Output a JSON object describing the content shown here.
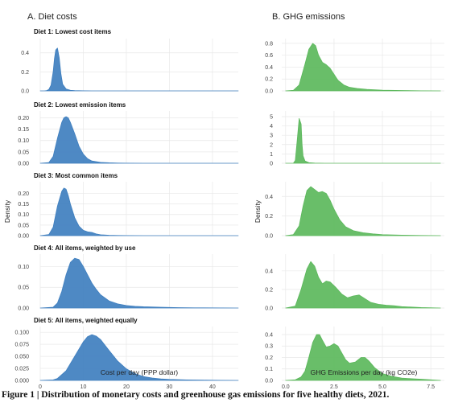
{
  "figure": {
    "caption": "Figure 1 | Distribution of monetary costs and greenhouse gas emissions for five healthy diets, 2021."
  },
  "chart_data": [
    {
      "type": "area",
      "title": "A. Diet costs",
      "xlabel": "Cost per day (PPP dollar)",
      "ylabel": "Density",
      "xlim": [
        0,
        46
      ],
      "xticks": [
        0,
        10,
        20,
        30,
        40
      ],
      "color": "#3f7fbf",
      "grid": true,
      "panels": [
        {
          "title": "Diet 1: Lowest cost items",
          "ylim": [
            0,
            0.55
          ],
          "yticks": [
            "0.0",
            "0.2",
            "0.4"
          ],
          "x": [
            0,
            1,
            1.5,
            2,
            2.5,
            3,
            3.3,
            3.6,
            4,
            4.4,
            4.8,
            5.2,
            6,
            7,
            8,
            10,
            12,
            46
          ],
          "y": [
            0,
            0,
            0.003,
            0.015,
            0.06,
            0.2,
            0.34,
            0.43,
            0.45,
            0.35,
            0.18,
            0.07,
            0.02,
            0.006,
            0.003,
            0.001,
            0,
            0
          ]
        },
        {
          "title": "Diet 2: Lowest emission items",
          "ylim": [
            0,
            0.23
          ],
          "yticks": [
            "0.00",
            "0.05",
            "0.10",
            "0.15",
            "0.20"
          ],
          "x": [
            0,
            2,
            3,
            4,
            5,
            5.5,
            6,
            6.5,
            7,
            8,
            9,
            10,
            11,
            12,
            14,
            16,
            18,
            20,
            24,
            46
          ],
          "y": [
            0,
            0.003,
            0.03,
            0.11,
            0.18,
            0.2,
            0.205,
            0.2,
            0.18,
            0.13,
            0.075,
            0.04,
            0.02,
            0.01,
            0.004,
            0.002,
            0.001,
            0.0005,
            0,
            0
          ]
        },
        {
          "title": "Diet 3: Most common items",
          "ylim": [
            0,
            0.255
          ],
          "yticks": [
            "0.00",
            "0.05",
            "0.10",
            "0.15",
            "0.20"
          ],
          "x": [
            0,
            2,
            3,
            4,
            5,
            5.5,
            6,
            6.5,
            7,
            8,
            9,
            10,
            11,
            12,
            13,
            14,
            16,
            18,
            20,
            24,
            46
          ],
          "y": [
            0,
            0.005,
            0.04,
            0.14,
            0.21,
            0.225,
            0.22,
            0.19,
            0.15,
            0.085,
            0.045,
            0.025,
            0.018,
            0.015,
            0.008,
            0.004,
            0.002,
            0.001,
            0.0005,
            0,
            0
          ]
        },
        {
          "title": "Diet 4: All items, weighted by use",
          "ylim": [
            0,
            0.13
          ],
          "yticks": [
            "0.00",
            "0.05",
            "0.10"
          ],
          "x": [
            0,
            3,
            4,
            5,
            6,
            7,
            8,
            9,
            10,
            11,
            12,
            13,
            14,
            16,
            18,
            20,
            22,
            24,
            28,
            32,
            36,
            46
          ],
          "y": [
            0,
            0.002,
            0.012,
            0.04,
            0.08,
            0.11,
            0.12,
            0.117,
            0.1,
            0.08,
            0.06,
            0.045,
            0.032,
            0.017,
            0.01,
            0.006,
            0.004,
            0.003,
            0.002,
            0.001,
            0.0005,
            0
          ]
        },
        {
          "title": "Diet 5: All items, weighted equally",
          "ylim": [
            0,
            0.112
          ],
          "yticks": [
            "0.000",
            "0.025",
            "0.050",
            "0.075",
            "0.100"
          ],
          "x": [
            0,
            3,
            4,
            6,
            8,
            10,
            11,
            12,
            13,
            14,
            16,
            18,
            20,
            22,
            24,
            26,
            28,
            30,
            34,
            38,
            42,
            46
          ],
          "y": [
            0,
            0.001,
            0.004,
            0.02,
            0.05,
            0.08,
            0.091,
            0.095,
            0.092,
            0.085,
            0.062,
            0.04,
            0.024,
            0.014,
            0.008,
            0.005,
            0.003,
            0.002,
            0.001,
            0.0005,
            0.0002,
            0
          ]
        }
      ]
    },
    {
      "type": "area",
      "title": "B. GHG emissions",
      "xlabel": "GHG Emissions per day (kg CO2e)",
      "ylabel": "Density",
      "xlim": [
        -0.2,
        8.2
      ],
      "xticks": [
        "0.0",
        "2.5",
        "5.0",
        "7.5"
      ],
      "color": "#5cb85c",
      "grid": true,
      "panels": [
        {
          "title": "",
          "ylim": [
            0,
            0.88
          ],
          "yticks": [
            "0.0",
            "0.2",
            "0.4",
            "0.6",
            "0.8"
          ],
          "x": [
            0,
            0.4,
            0.7,
            1.0,
            1.2,
            1.4,
            1.55,
            1.7,
            1.9,
            2.1,
            2.3,
            2.5,
            2.7,
            3.0,
            3.3,
            3.7,
            4.2,
            5.0,
            6.0,
            7.0,
            8.0
          ],
          "y": [
            0,
            0.01,
            0.1,
            0.45,
            0.7,
            0.8,
            0.76,
            0.6,
            0.48,
            0.44,
            0.38,
            0.28,
            0.18,
            0.1,
            0.06,
            0.04,
            0.025,
            0.012,
            0.006,
            0.002,
            0
          ]
        },
        {
          "title": "",
          "ylim": [
            0,
            5.6
          ],
          "yticks": [
            "0",
            "1",
            "2",
            "3",
            "4",
            "5"
          ],
          "x": [
            0,
            0.4,
            0.5,
            0.6,
            0.7,
            0.8,
            0.85,
            0.9,
            1.0,
            1.2,
            1.5,
            2.0,
            8.0
          ],
          "y": [
            0,
            0,
            0.3,
            2.5,
            4.8,
            4.2,
            2.0,
            0.8,
            0.25,
            0.06,
            0.02,
            0,
            0
          ]
        },
        {
          "title": "",
          "ylim": [
            0,
            0.55
          ],
          "yticks": [
            "0.0",
            "0.2",
            "0.4"
          ],
          "x": [
            0,
            0.4,
            0.7,
            0.9,
            1.1,
            1.3,
            1.5,
            1.7,
            1.9,
            2.1,
            2.3,
            2.5,
            2.8,
            3.1,
            3.5,
            4.0,
            4.5,
            5.0,
            6.0,
            7.0,
            8.0
          ],
          "y": [
            0,
            0.01,
            0.1,
            0.3,
            0.46,
            0.5,
            0.47,
            0.44,
            0.45,
            0.43,
            0.36,
            0.27,
            0.16,
            0.09,
            0.05,
            0.03,
            0.018,
            0.01,
            0.005,
            0.002,
            0
          ]
        },
        {
          "title": "",
          "ylim": [
            0,
            0.58
          ],
          "yticks": [
            "0.0",
            "0.2",
            "0.4"
          ],
          "x": [
            0,
            0.5,
            0.8,
            1.1,
            1.3,
            1.5,
            1.7,
            1.9,
            2.1,
            2.3,
            2.6,
            2.9,
            3.2,
            3.5,
            3.8,
            4.1,
            4.4,
            4.8,
            5.2,
            5.6,
            6.0,
            7.0,
            8.0
          ],
          "y": [
            0,
            0.02,
            0.2,
            0.42,
            0.5,
            0.45,
            0.33,
            0.26,
            0.29,
            0.28,
            0.22,
            0.15,
            0.11,
            0.13,
            0.14,
            0.1,
            0.06,
            0.04,
            0.03,
            0.025,
            0.015,
            0.005,
            0
          ]
        },
        {
          "title": "",
          "ylim": [
            0,
            0.47
          ],
          "yticks": [
            "0.0",
            "0.1",
            "0.2",
            "0.3",
            "0.4"
          ],
          "x": [
            0,
            0.5,
            0.8,
            1.0,
            1.2,
            1.4,
            1.6,
            1.75,
            1.9,
            2.1,
            2.3,
            2.5,
            2.7,
            2.9,
            3.1,
            3.3,
            3.6,
            3.9,
            4.1,
            4.3,
            4.6,
            5.0,
            5.5,
            6.0,
            6.5,
            7.0,
            7.5,
            8.0
          ],
          "y": [
            0,
            0.005,
            0.03,
            0.08,
            0.2,
            0.33,
            0.4,
            0.4,
            0.35,
            0.29,
            0.3,
            0.32,
            0.3,
            0.24,
            0.18,
            0.15,
            0.16,
            0.2,
            0.2,
            0.17,
            0.11,
            0.06,
            0.035,
            0.02,
            0.015,
            0.01,
            0.005,
            0
          ]
        }
      ]
    }
  ]
}
